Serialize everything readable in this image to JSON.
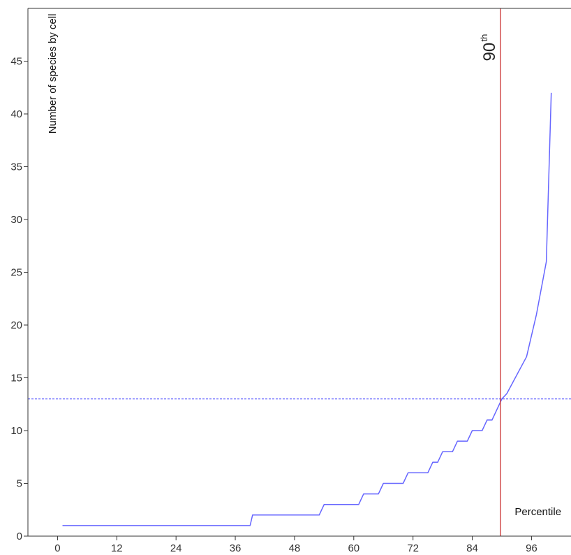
{
  "chart_data": {
    "type": "line",
    "xlabel": "Percentile",
    "ylabel": "Number of species by cell",
    "xlim": [
      -6,
      104
    ],
    "ylim": [
      0,
      50
    ],
    "x_ticks": [
      0,
      12,
      24,
      36,
      48,
      60,
      72,
      84,
      96
    ],
    "y_ticks": [
      0,
      5,
      10,
      15,
      20,
      25,
      30,
      35,
      40,
      45
    ],
    "grid": false,
    "series": [
      {
        "color": "#6666ff",
        "points": [
          [
            1,
            1
          ],
          [
            39,
            1
          ],
          [
            39.5,
            2
          ],
          [
            53,
            2
          ],
          [
            54,
            3
          ],
          [
            61,
            3
          ],
          [
            62,
            4
          ],
          [
            65,
            4
          ],
          [
            66,
            5
          ],
          [
            70,
            5
          ],
          [
            71,
            6
          ],
          [
            75,
            6
          ],
          [
            76,
            7
          ],
          [
            77,
            7
          ],
          [
            78,
            8
          ],
          [
            80,
            8
          ],
          [
            81,
            9
          ],
          [
            83,
            9
          ],
          [
            84,
            10
          ],
          [
            86,
            10
          ],
          [
            87,
            11
          ],
          [
            88,
            11
          ],
          [
            90,
            13
          ],
          [
            91,
            13.5
          ],
          [
            95,
            17
          ],
          [
            97,
            21
          ],
          [
            99,
            26
          ],
          [
            100,
            42
          ]
        ]
      }
    ],
    "reference_lines": {
      "vertical": {
        "x": 89.7,
        "color": "#cc3333",
        "label": "90",
        "label_sup": "th"
      },
      "horizontal": {
        "y": 13,
        "color": "#4444ff",
        "style": "dashed"
      }
    }
  }
}
